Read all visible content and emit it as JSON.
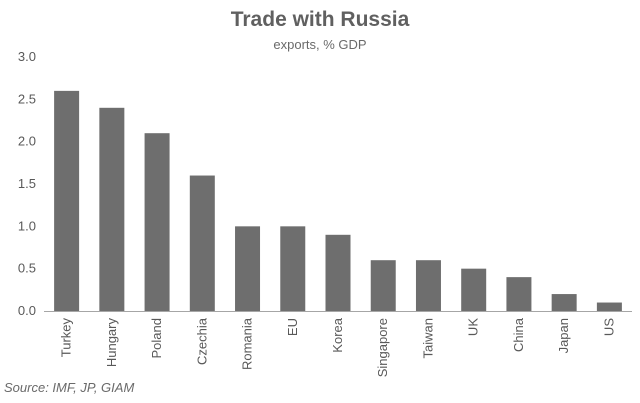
{
  "chart_data": {
    "type": "bar",
    "title": "Trade with Russia",
    "subtitle": "exports, % GDP",
    "source": "Source: IMF, JP, GIAM",
    "categories": [
      "Turkey",
      "Hungary",
      "Poland",
      "Czechia",
      "Romania",
      "EU",
      "Korea",
      "Singapore",
      "Taiwan",
      "UK",
      "China",
      "Japan",
      "US"
    ],
    "values": [
      2.6,
      2.4,
      2.1,
      1.6,
      1.0,
      1.0,
      0.9,
      0.6,
      0.6,
      0.5,
      0.4,
      0.2,
      0.1
    ],
    "y_ticks": [
      "0.0",
      "0.5",
      "1.0",
      "1.5",
      "2.0",
      "2.5",
      "3.0"
    ],
    "ylim": [
      0,
      3
    ],
    "xlabel": "",
    "ylabel": "",
    "grid": false,
    "legend": "none",
    "colors": {
      "bar": "#6e6e6e",
      "axis": "#a6a6a6",
      "text": "#595959"
    }
  }
}
